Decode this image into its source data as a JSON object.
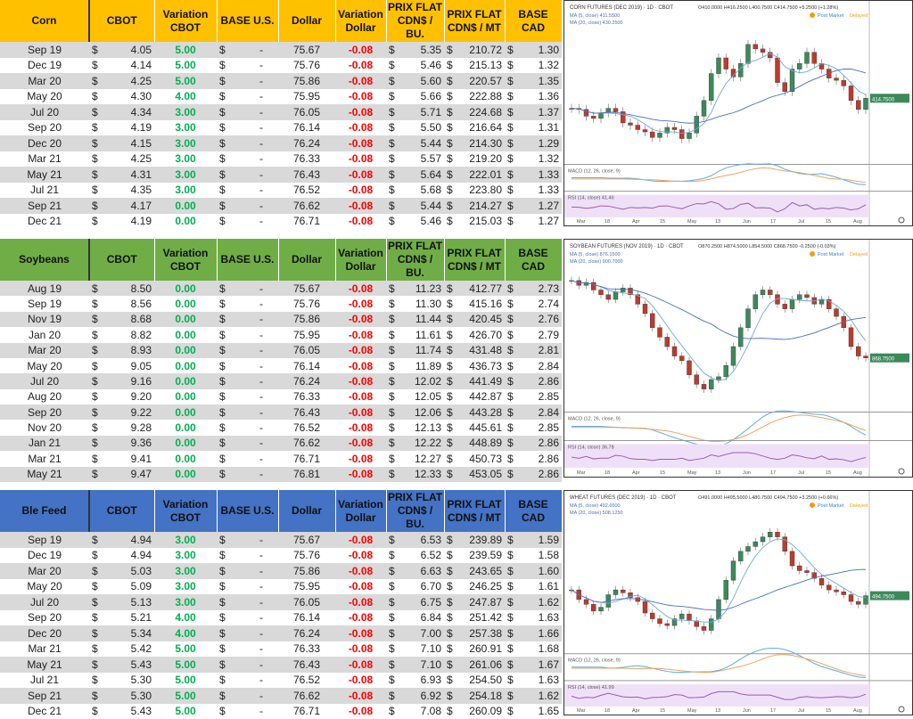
{
  "columns": [
    "CBOT",
    "Variation CBOT",
    "BASE U.S.",
    "Dollar",
    "Variation Dollar",
    "PRIX FLAT CDN$ / BU.",
    "PRIX FLAT CDN$ / MT",
    "BASE CAD"
  ],
  "currency": "$",
  "dash": "-",
  "sections": [
    {
      "name": "Corn",
      "color": "#ffc000",
      "rows": [
        [
          "Sep 19",
          "4.05",
          "5.00",
          "75.67",
          "-0.08",
          "5.35",
          "210.72",
          "1.30"
        ],
        [
          "Dec 19",
          "4.14",
          "5.00",
          "75.76",
          "-0.08",
          "5.46",
          "215.13",
          "1.32"
        ],
        [
          "Mar 20",
          "4.25",
          "5.00",
          "75.86",
          "-0.08",
          "5.60",
          "220.57",
          "1.35"
        ],
        [
          "May 20",
          "4.30",
          "4.00",
          "75.95",
          "-0.08",
          "5.66",
          "222.88",
          "1.36"
        ],
        [
          "Jul 20",
          "4.34",
          "3.00",
          "76.05",
          "-0.08",
          "5.71",
          "224.68",
          "1.37"
        ],
        [
          "Sep 20",
          "4.19",
          "3.00",
          "76.14",
          "-0.08",
          "5.50",
          "216.64",
          "1.31"
        ],
        [
          "Dec 20",
          "4.15",
          "3.00",
          "76.24",
          "-0.08",
          "5.44",
          "214.30",
          "1.29"
        ],
        [
          "Mar 21",
          "4.25",
          "3.00",
          "76.33",
          "-0.08",
          "5.57",
          "219.20",
          "1.32"
        ],
        [
          "May 21",
          "4.31",
          "3.00",
          "76.43",
          "-0.08",
          "5.64",
          "222.01",
          "1.33"
        ],
        [
          "Jul 21",
          "4.35",
          "3.00",
          "76.52",
          "-0.08",
          "5.68",
          "223.80",
          "1.33"
        ],
        [
          "Sep 21",
          "4.17",
          "0.00",
          "76.62",
          "-0.08",
          "5.44",
          "214.27",
          "1.27"
        ],
        [
          "Dec 21",
          "4.19",
          "0.00",
          "76.71",
          "-0.08",
          "5.46",
          "215.03",
          "1.27"
        ]
      ],
      "chart": {
        "title": "CORN FUTURES (DEC 2019) · 1D · CBOT",
        "ohlc": "O410.0000 H416.2500 L400.7500 C414.7500 +5.2500 (+1.28%)",
        "ma5": "MA (5, close) 411.5500",
        "ma20": "MA (20, close) 430.2500",
        "macd": "MACD (12, 26, close, 9)",
        "rsi": "RSI (14, close) 41.46",
        "status": "Post Market",
        "delayed": "Delayed",
        "last": "414.7500",
        "months": [
          "Mar",
          "18",
          "Apr",
          "15",
          "May",
          "13",
          "Jun",
          "17",
          "Jul",
          "15",
          "Aug"
        ],
        "closes": [
          405,
          404,
          398,
          396,
          401,
          405,
          402,
          392,
          390,
          386,
          384,
          379,
          383,
          388,
          386,
          378,
          383,
          398,
          412,
          436,
          450,
          440,
          433,
          445,
          462,
          458,
          455,
          450,
          428,
          420,
          440,
          445,
          455,
          445,
          440,
          432,
          430,
          425,
          412,
          404,
          414
        ]
      }
    },
    {
      "name": "Soybeans",
      "color": "#70ad47",
      "rows": [
        [
          "Aug 19",
          "8.50",
          "0.00",
          "75.67",
          "-0.08",
          "11.23",
          "412.77",
          "2.73"
        ],
        [
          "Sep 19",
          "8.56",
          "0.00",
          "75.76",
          "-0.08",
          "11.30",
          "415.16",
          "2.74"
        ],
        [
          "Nov 19",
          "8.68",
          "0.00",
          "75.86",
          "-0.08",
          "11.44",
          "420.45",
          "2.76"
        ],
        [
          "Jan 20",
          "8.82",
          "0.00",
          "75.95",
          "-0.08",
          "11.61",
          "426.70",
          "2.79"
        ],
        [
          "Mar 20",
          "8.93",
          "0.00",
          "76.05",
          "-0.08",
          "11.74",
          "431.48",
          "2.81"
        ],
        [
          "May 20",
          "9.05",
          "0.00",
          "76.14",
          "-0.08",
          "11.89",
          "436.73",
          "2.84"
        ],
        [
          "Jul 20",
          "9.16",
          "0.00",
          "76.24",
          "-0.08",
          "12.02",
          "441.49",
          "2.86"
        ],
        [
          "Aug 20",
          "9.20",
          "0.00",
          "76.33",
          "-0.08",
          "12.05",
          "442.87",
          "2.85"
        ],
        [
          "Sep 20",
          "9.22",
          "0.00",
          "76.43",
          "-0.08",
          "12.06",
          "443.28",
          "2.84"
        ],
        [
          "Nov 20",
          "9.28",
          "0.00",
          "76.52",
          "-0.08",
          "12.13",
          "445.61",
          "2.85"
        ],
        [
          "Jan 21",
          "9.36",
          "0.00",
          "76.62",
          "-0.08",
          "12.22",
          "448.89",
          "2.86"
        ],
        [
          "Mar 21",
          "9.41",
          "0.00",
          "76.71",
          "-0.08",
          "12.27",
          "450.73",
          "2.86"
        ],
        [
          "May 21",
          "9.47",
          "0.00",
          "76.81",
          "-0.08",
          "12.33",
          "453.05",
          "2.86"
        ]
      ],
      "chart": {
        "title": "SOYBEAN FUTURES (NOV 2019) · 1D · CBOT",
        "ohlc": "O870.2500 H874.5000 L854.5000 C868.7500 -0.2500 (-0.03%)",
        "ma5": "MA (5, close) 876.1500",
        "ma20": "MA (20, close) 900.7000",
        "macd": "MACD (12, 26, close, 9)",
        "rsi": "RSI (14, close) 36.78",
        "status": "Post Market",
        "delayed": "Delayed",
        "last": "868.7500",
        "months": [
          "Mar",
          "18",
          "Apr",
          "15",
          "May",
          "13",
          "Jun",
          "17",
          "Jul",
          "15",
          "Aug"
        ],
        "closes": [
          950,
          945,
          948,
          940,
          935,
          930,
          938,
          942,
          935,
          925,
          915,
          900,
          890,
          880,
          870,
          865,
          850,
          840,
          835,
          845,
          848,
          860,
          880,
          900,
          920,
          935,
          940,
          935,
          925,
          920,
          930,
          935,
          932,
          925,
          930,
          920,
          912,
          900,
          880,
          870,
          868
        ]
      }
    },
    {
      "name": "Ble Feed",
      "color": "#4472c4",
      "rows": [
        [
          "Sep 19",
          "4.94",
          "3.00",
          "75.67",
          "-0.08",
          "6.53",
          "239.89",
          "1.59"
        ],
        [
          "Dec 19",
          "4.94",
          "3.00",
          "75.76",
          "-0.08",
          "6.52",
          "239.59",
          "1.58"
        ],
        [
          "Mar 20",
          "5.03",
          "3.00",
          "75.86",
          "-0.08",
          "6.63",
          "243.65",
          "1.60"
        ],
        [
          "May 20",
          "5.09",
          "3.00",
          "75.95",
          "-0.08",
          "6.70",
          "246.25",
          "1.61"
        ],
        [
          "Jul 20",
          "5.13",
          "3.00",
          "76.05",
          "-0.08",
          "6.75",
          "247.87",
          "1.62"
        ],
        [
          "Sep 20",
          "5.21",
          "4.00",
          "76.14",
          "-0.08",
          "6.84",
          "251.42",
          "1.63"
        ],
        [
          "Dec 20",
          "5.34",
          "4.00",
          "76.24",
          "-0.08",
          "7.00",
          "257.38",
          "1.66"
        ],
        [
          "Mar 21",
          "5.42",
          "5.00",
          "76.33",
          "-0.08",
          "7.10",
          "260.91",
          "1.68"
        ],
        [
          "May 21",
          "5.43",
          "5.00",
          "76.43",
          "-0.08",
          "7.10",
          "261.06",
          "1.67"
        ],
        [
          "Jul 21",
          "5.30",
          "5.00",
          "76.52",
          "-0.08",
          "6.93",
          "254.50",
          "1.63"
        ],
        [
          "Sep 21",
          "5.30",
          "5.00",
          "76.62",
          "-0.08",
          "6.92",
          "254.18",
          "1.62"
        ],
        [
          "Dec 21",
          "5.43",
          "5.00",
          "76.71",
          "-0.08",
          "7.08",
          "260.09",
          "1.65"
        ]
      ],
      "chart": {
        "title": "WHEAT FUTURES (DEC 2019) · 1D · CBOT",
        "ohlc": "O491.0000 H495.5000 L480.7500 C494.7500 +3.2500 (+0.66%)",
        "ma5": "MA (5, close) 492.6500",
        "ma20": "MA (20, close) 508.1250",
        "macd": "MACD (12, 26, close, 9)",
        "rsi": "RSI (14, close) 41.99",
        "status": "Post Market",
        "delayed": "Delayed",
        "last": "494.7500",
        "months": [
          "Mar",
          "18",
          "Apr",
          "15",
          "May",
          "13",
          "Jun",
          "17",
          "Jul",
          "15",
          "Aug"
        ],
        "closes": [
          500,
          490,
          485,
          478,
          482,
          495,
          500,
          497,
          492,
          488,
          476,
          470,
          465,
          463,
          470,
          475,
          468,
          462,
          458,
          470,
          490,
          510,
          530,
          540,
          545,
          550,
          555,
          560,
          555,
          540,
          525,
          520,
          518,
          512,
          505,
          500,
          498,
          495,
          488,
          485,
          494
        ]
      }
    }
  ]
}
